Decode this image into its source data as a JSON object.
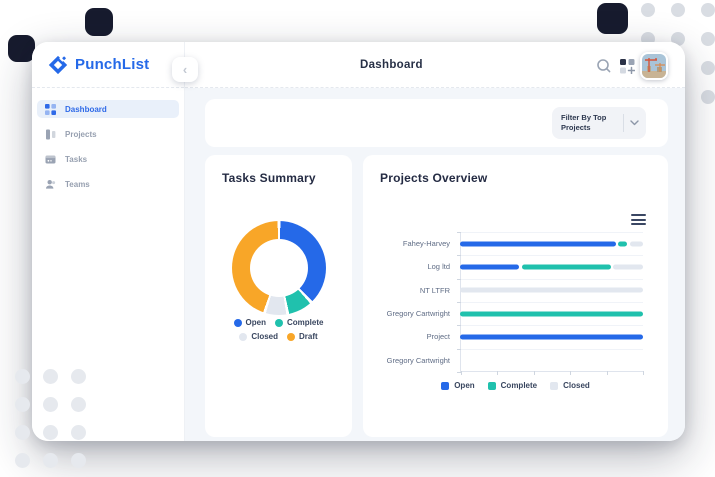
{
  "app": {
    "name": "PunchList"
  },
  "sidebar": {
    "logo_text": "PunchList",
    "items": [
      {
        "label": "Dashboard",
        "icon": "dashboard-grid",
        "active": true
      },
      {
        "label": "Projects",
        "icon": "projects-columns",
        "active": false
      },
      {
        "label": "Tasks",
        "icon": "tasks-card",
        "active": false
      },
      {
        "label": "Teams",
        "icon": "teams-person",
        "active": false
      }
    ]
  },
  "header": {
    "title": "Dashboard",
    "icons": [
      "search-icon",
      "apps-grid-icon",
      "user-avatar"
    ]
  },
  "filter": {
    "label": "Filter By Top Projects",
    "chevron": "chevron-down-icon"
  },
  "tasks_summary": {
    "title": "Tasks Summary",
    "chart_data": {
      "type": "pie",
      "title": "Tasks Summary",
      "legend_position": "bottom",
      "segments": [
        {
          "label": "Open",
          "value": 38,
          "color": "#2569e8"
        },
        {
          "label": "Complete",
          "value": 9,
          "color": "#20c1ad"
        },
        {
          "label": "Closed",
          "value": 8,
          "color": "#e2e7ef"
        },
        {
          "label": "Draft",
          "value": 45,
          "color": "#f8a628"
        }
      ]
    }
  },
  "projects_overview": {
    "title": "Projects Overview",
    "chart_data": {
      "type": "bar",
      "orientation": "horizontal",
      "title": "Projects Overview",
      "categories": [
        "Fahey-Harvey",
        "Log ltd",
        "NT LTFR",
        "Gregory Cartwright",
        "Project",
        "Gregory Cartwright"
      ],
      "series": [
        {
          "name": "Open",
          "color": "#2569e8",
          "values": [
            85,
            32.5,
            0,
            0,
            100,
            0
          ]
        },
        {
          "name": "Complete",
          "color": "#20c1ad",
          "values": [
            5,
            48.5,
            0,
            100,
            0,
            0
          ]
        },
        {
          "name": "Closed",
          "color": "#e2e7ef",
          "values": [
            7,
            16,
            100,
            0,
            0,
            0
          ]
        }
      ],
      "xlim": [
        0,
        100
      ],
      "x_ticks": [
        0,
        20,
        40,
        60,
        80,
        100
      ],
      "grid": true,
      "legend_position": "bottom"
    }
  },
  "colors": {
    "accent_blue": "#2569e8",
    "teal": "#20c1ad",
    "light_gray": "#e2e7ef",
    "orange": "#f8a628",
    "dark_text": "#242b43"
  }
}
